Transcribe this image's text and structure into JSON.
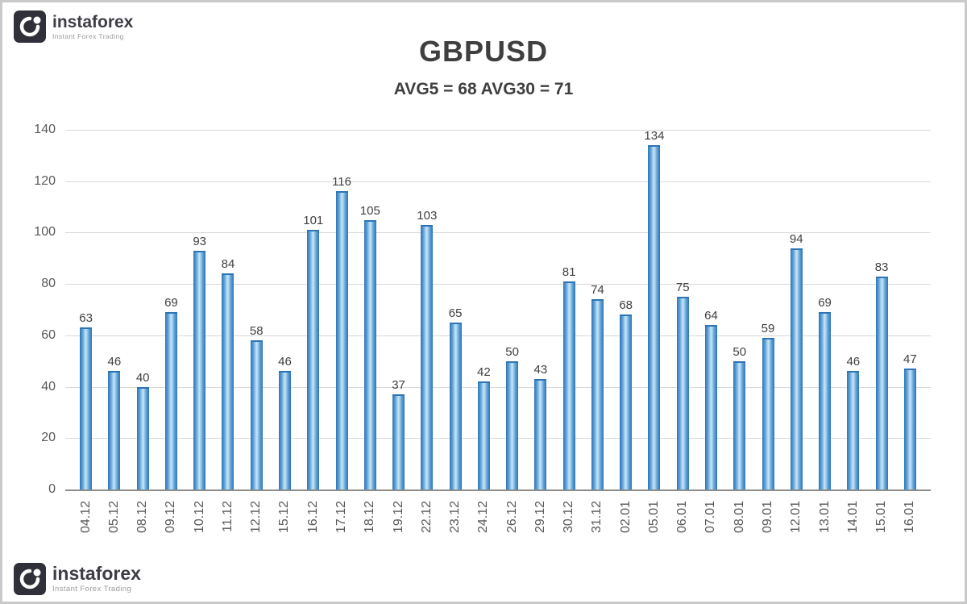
{
  "branding": {
    "top": {
      "name": "instaforex",
      "tagline": "Instant Forex Trading"
    },
    "bottom": {
      "name": "instaforex",
      "tagline": "Instant Forex Trading"
    }
  },
  "chart_data": {
    "type": "bar",
    "title": "GBPUSD",
    "subtitle": "AVG5 = 68 AVG30 = 71",
    "avg5": 68,
    "avg30": 71,
    "categories": [
      "04.12",
      "05.12",
      "08.12",
      "09.12",
      "10.12",
      "11.12",
      "12.12",
      "15.12",
      "16.12",
      "17.12",
      "18.12",
      "19.12",
      "22.12",
      "23.12",
      "24.12",
      "26.12",
      "29.12",
      "30.12",
      "31.12",
      "02.01",
      "05.01",
      "06.01",
      "07.01",
      "08.01",
      "09.01",
      "12.01",
      "13.01",
      "14.01",
      "15.01",
      "16.01"
    ],
    "values": [
      63,
      46,
      40,
      69,
      93,
      84,
      58,
      46,
      101,
      116,
      105,
      37,
      103,
      65,
      42,
      50,
      43,
      81,
      74,
      68,
      134,
      75,
      64,
      50,
      59,
      94,
      69,
      46,
      83,
      47
    ],
    "xlabel": "",
    "ylabel": "",
    "ylim": [
      0,
      140
    ],
    "ytick_step": 20,
    "yticks": [
      0,
      20,
      40,
      60,
      80,
      100,
      120,
      140
    ],
    "grid": true,
    "legend": "none",
    "colors": {
      "bar_edge": "#2e74b5",
      "bar_mid": "#5b9fd4",
      "bar_light": "#c9e6f8",
      "grid": "#d9d9d9",
      "axis": "#8c8c8c",
      "title": "#3f3f3f",
      "tick": "#595959"
    }
  }
}
